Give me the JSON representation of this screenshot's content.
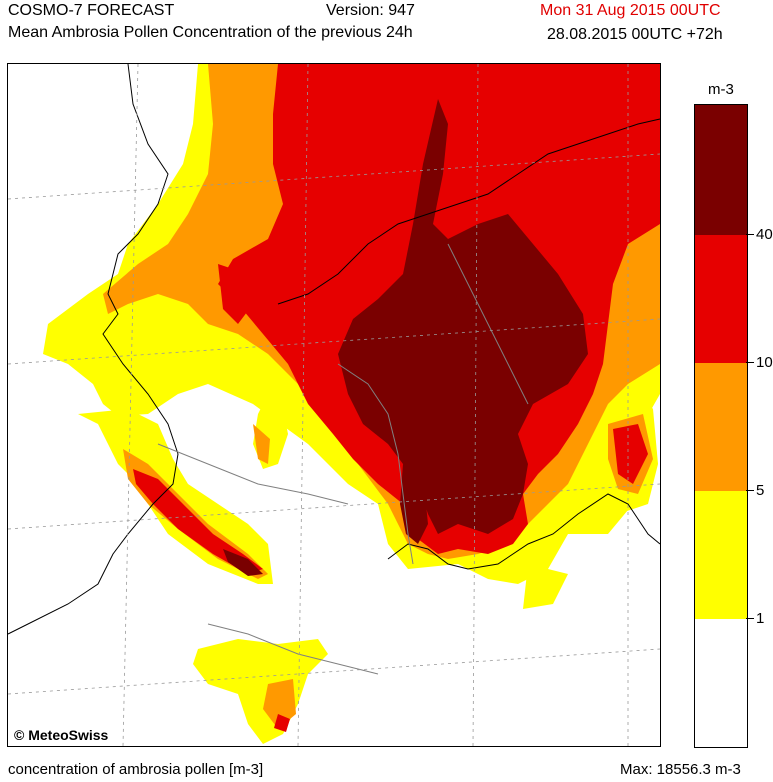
{
  "header": {
    "product": "COSMO-7 FORECAST",
    "version": "Version: 947",
    "valid_time": "Mon 31 Aug 2015 00UTC",
    "subtitle": "Mean Ambrosia Pollen Concentration of the previous 24h",
    "run_time": "28.08.2015 00UTC +72h"
  },
  "legend": {
    "unit": "m-3",
    "levels": [
      {
        "label": "1",
        "color": "#ffff00"
      },
      {
        "label": "5",
        "color": "#ff9900"
      },
      {
        "label": "10",
        "color": "#e60000"
      },
      {
        "label": "40",
        "color": "#7a0000"
      }
    ],
    "below_color": "#ffffff"
  },
  "footer": {
    "left": "concentration of ambrosia pollen [m-3]",
    "right": "Max: 18556.3 m-3"
  },
  "copyright": "© MeteoSwiss",
  "colors": {
    "valid_time": "#e00000",
    "yellow": "#ffff00",
    "orange": "#ff9900",
    "red": "#e60000",
    "darkred": "#7a0000"
  }
}
